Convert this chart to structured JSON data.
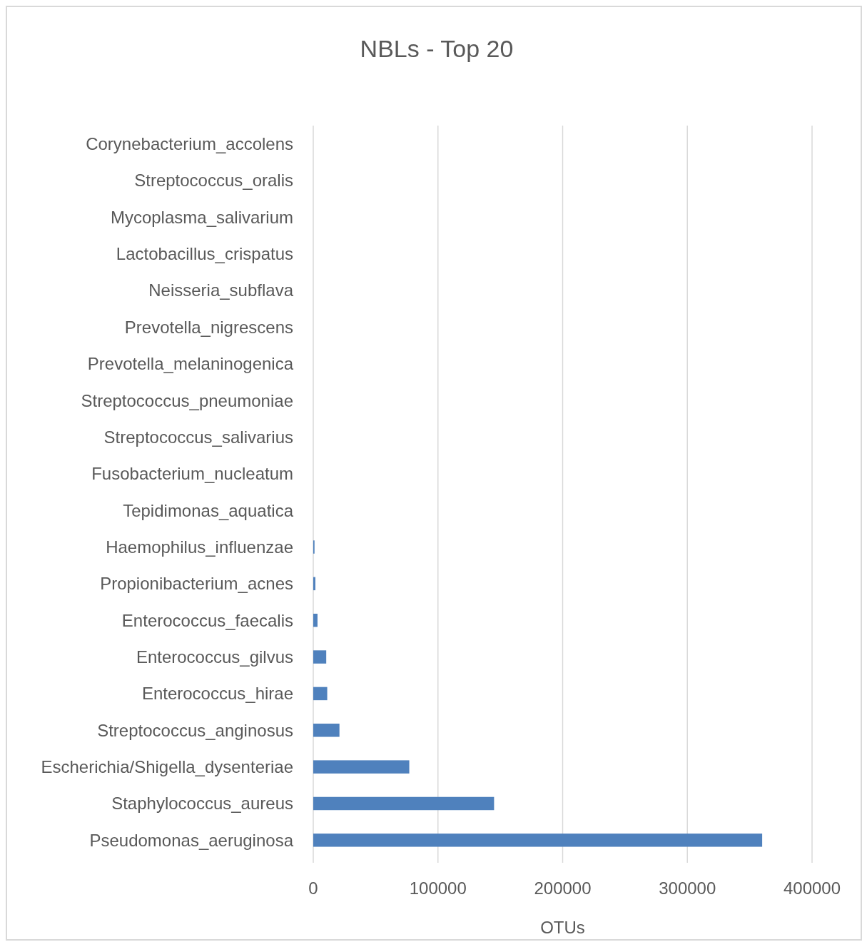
{
  "chart_data": {
    "type": "bar",
    "orientation": "horizontal",
    "title": "NBLs - Top 20",
    "xlabel": "OTUs",
    "categories": [
      "Corynebacterium_accolens",
      "Streptococcus_oralis",
      "Mycoplasma_salivarium",
      "Lactobacillus_crispatus",
      "Neisseria_subflava",
      "Prevotella_nigrescens",
      "Prevotella_melaninogenica",
      "Streptococcus_pneumoniae",
      "Streptococcus_salivarius",
      "Fusobacterium_nucleatum",
      "Tepidimonas_aquatica",
      "Haemophilus_influenzae",
      "Propionibacterium_acnes",
      "Enterococcus_faecalis",
      "Enterococcus_gilvus",
      "Enterococcus_hirae",
      "Streptococcus_anginosus",
      "Escherichia/Shigella_dysenteriae",
      "Staphylococcus_aureus",
      "Pseudomonas_aeruginosa"
    ],
    "values": [
      0,
      0,
      0,
      0,
      0,
      0,
      0,
      0,
      0,
      0,
      0,
      1000,
      1700,
      3400,
      10400,
      11200,
      21000,
      77000,
      145000,
      360000
    ],
    "color": "#4f81bd",
    "xlim": [
      0,
      400000
    ],
    "xticks": [
      0,
      100000,
      200000,
      300000,
      400000
    ],
    "grid": "x"
  }
}
